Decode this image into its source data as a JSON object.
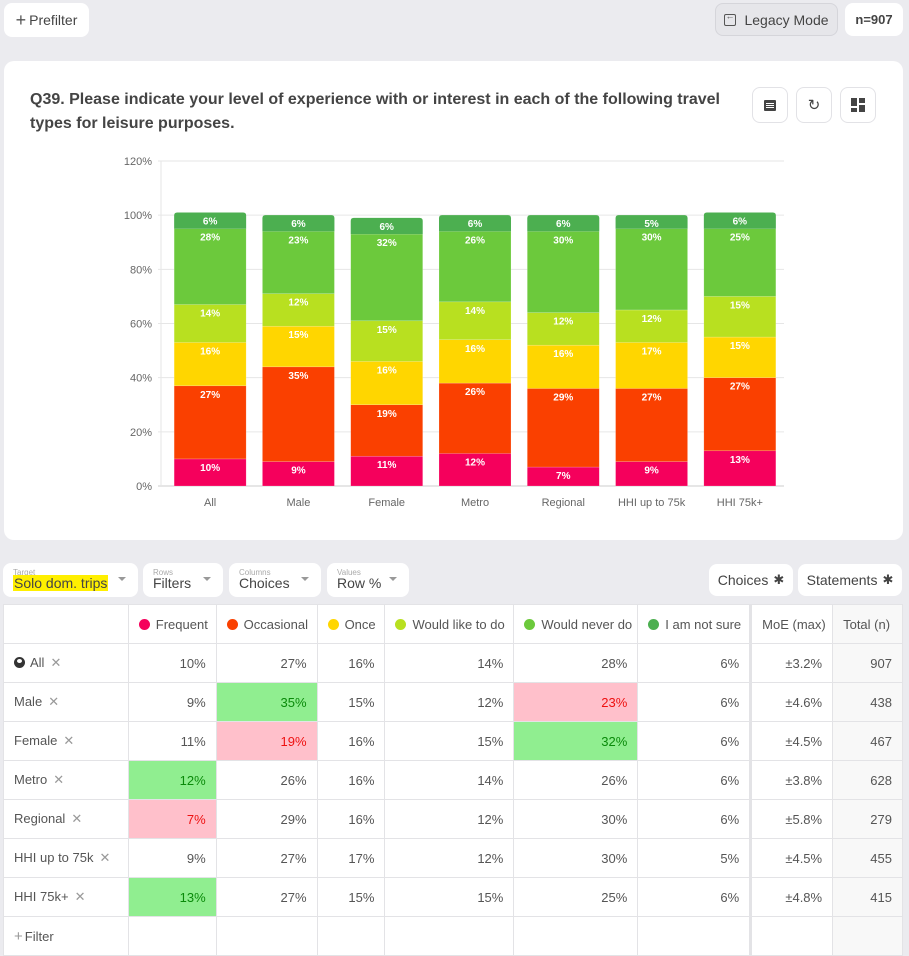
{
  "topbar": {
    "prefilter_label": "Prefilter",
    "legacy_label": "Legacy Mode",
    "n_badge": "n=907"
  },
  "card": {
    "title": "Q39. Please indicate your level of experience with or interest in each of the following travel types for leisure purposes.",
    "icons": [
      "comment-icon",
      "refresh-icon",
      "dashboard-icon"
    ]
  },
  "chart_data": {
    "type": "bar",
    "stacked": true,
    "title": "Q39. Please indicate your level of experience with or interest in each of the following travel types for leisure purposes.",
    "xlabel": "",
    "ylabel": "",
    "ylim": [
      0,
      120
    ],
    "yticks": [
      "0%",
      "20%",
      "40%",
      "60%",
      "80%",
      "100%",
      "120%"
    ],
    "ytick_values": [
      0,
      20,
      40,
      60,
      80,
      100,
      120
    ],
    "grid": true,
    "categories": [
      "All",
      "Male",
      "Female",
      "Metro",
      "Regional",
      "HHI up to 75k",
      "HHI 75k+"
    ],
    "series": [
      {
        "name": "Frequent",
        "color": "#f5005c",
        "values": [
          10,
          9,
          11,
          12,
          7,
          9,
          13
        ]
      },
      {
        "name": "Occasional",
        "color": "#fa4000",
        "values": [
          27,
          35,
          19,
          26,
          29,
          27,
          27
        ]
      },
      {
        "name": "Once",
        "color": "#ffd600",
        "values": [
          16,
          15,
          16,
          16,
          16,
          17,
          15
        ]
      },
      {
        "name": "Would like to do",
        "color": "#b8e020",
        "values": [
          14,
          12,
          15,
          14,
          12,
          12,
          15
        ]
      },
      {
        "name": "Would never do",
        "color": "#6cc93c",
        "values": [
          28,
          23,
          32,
          26,
          30,
          30,
          25
        ]
      },
      {
        "name": "I am not sure",
        "color": "#4caf50",
        "values": [
          6,
          6,
          6,
          6,
          6,
          5,
          6
        ]
      }
    ]
  },
  "controls": {
    "target": {
      "label": "Target",
      "value": "Solo dom. trips"
    },
    "rows": {
      "label": "Rows",
      "value": "Filters"
    },
    "columns": {
      "label": "Columns",
      "value": "Choices"
    },
    "values": {
      "label": "Values",
      "value": "Row %"
    },
    "choices_btn": "Choices",
    "statements_btn": "Statements"
  },
  "table": {
    "headers": [
      "Frequent",
      "Occasional",
      "Once",
      "Would like to do",
      "Would never do",
      "I am not sure",
      "MoE (max)",
      "Total (n)"
    ],
    "header_colors": [
      "#f5005c",
      "#fa4000",
      "#ffd600",
      "#b8e020",
      "#6cc93c",
      "#4caf50"
    ],
    "rows": [
      {
        "label": "All",
        "cells": [
          "10%",
          "27%",
          "16%",
          "14%",
          "28%",
          "6%"
        ],
        "moe": "±3.2%",
        "total": "907",
        "hl": [
          "",
          "",
          "",
          "",
          "",
          ""
        ]
      },
      {
        "label": "Male",
        "cells": [
          "9%",
          "35%",
          "15%",
          "12%",
          "23%",
          "6%"
        ],
        "moe": "±4.6%",
        "total": "438",
        "hl": [
          "",
          "up",
          "",
          "",
          "down",
          ""
        ]
      },
      {
        "label": "Female",
        "cells": [
          "11%",
          "19%",
          "16%",
          "15%",
          "32%",
          "6%"
        ],
        "moe": "±4.5%",
        "total": "467",
        "hl": [
          "",
          "down",
          "",
          "",
          "up",
          ""
        ]
      },
      {
        "label": "Metro",
        "cells": [
          "12%",
          "26%",
          "16%",
          "14%",
          "26%",
          "6%"
        ],
        "moe": "±3.8%",
        "total": "628",
        "hl": [
          "up",
          "",
          "",
          "",
          "",
          ""
        ]
      },
      {
        "label": "Regional",
        "cells": [
          "7%",
          "29%",
          "16%",
          "12%",
          "30%",
          "6%"
        ],
        "moe": "±5.8%",
        "total": "279",
        "hl": [
          "down",
          "",
          "",
          "",
          "",
          ""
        ]
      },
      {
        "label": "HHI up to 75k",
        "cells": [
          "9%",
          "27%",
          "17%",
          "12%",
          "30%",
          "5%"
        ],
        "moe": "±4.5%",
        "total": "455",
        "hl": [
          "",
          "",
          "",
          "",
          "",
          ""
        ]
      },
      {
        "label": "HHI 75k+",
        "cells": [
          "13%",
          "27%",
          "15%",
          "15%",
          "25%",
          "6%"
        ],
        "moe": "±4.8%",
        "total": "415",
        "hl": [
          "up",
          "",
          "",
          "",
          "",
          ""
        ]
      }
    ],
    "add_filter_label": "Filter"
  }
}
